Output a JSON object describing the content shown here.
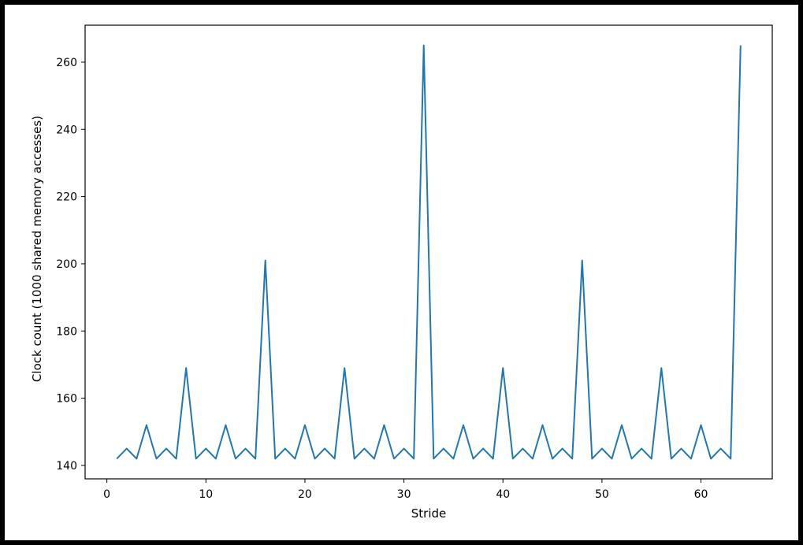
{
  "chart_data": {
    "type": "line",
    "title": "",
    "xlabel": "Stride",
    "ylabel": "Clock count (1000 shared memory accesses)",
    "xlim": [
      -2.2,
      67.2
    ],
    "ylim": [
      136,
      271
    ],
    "xticks": [
      0,
      10,
      20,
      30,
      40,
      50,
      60
    ],
    "yticks": [
      140,
      160,
      180,
      200,
      220,
      240,
      260
    ],
    "grid": false,
    "legend": "none",
    "colors": {
      "line": "#1f77b4",
      "axes": "#000000",
      "background": "#ffffff",
      "border": "#000000"
    },
    "series": [
      {
        "x": [
          1,
          2,
          3,
          4,
          5,
          6,
          7,
          8,
          9,
          10,
          11,
          12,
          13,
          14,
          15,
          16,
          17,
          18,
          19,
          20,
          21,
          22,
          23,
          24,
          25,
          26,
          27,
          28,
          29,
          30,
          31,
          32,
          33,
          34,
          35,
          36,
          37,
          38,
          39,
          40,
          41,
          42,
          43,
          44,
          45,
          46,
          47,
          48,
          49,
          50,
          51,
          52,
          53,
          54,
          55,
          56,
          57,
          58,
          59,
          60,
          61,
          62,
          63,
          64
        ],
        "values": [
          142,
          145,
          142,
          152,
          142,
          145,
          142,
          169,
          142,
          145,
          142,
          152,
          142,
          145,
          142,
          201,
          142,
          145,
          142,
          152,
          142,
          145,
          142,
          169,
          142,
          145,
          142,
          152,
          142,
          145,
          142,
          265,
          142,
          145,
          142,
          152,
          142,
          145,
          142,
          169,
          142,
          145,
          142,
          152,
          142,
          145,
          142,
          201,
          142,
          145,
          142,
          152,
          142,
          145,
          142,
          169,
          142,
          145,
          142,
          152,
          142,
          145,
          142,
          265
        ]
      }
    ]
  }
}
